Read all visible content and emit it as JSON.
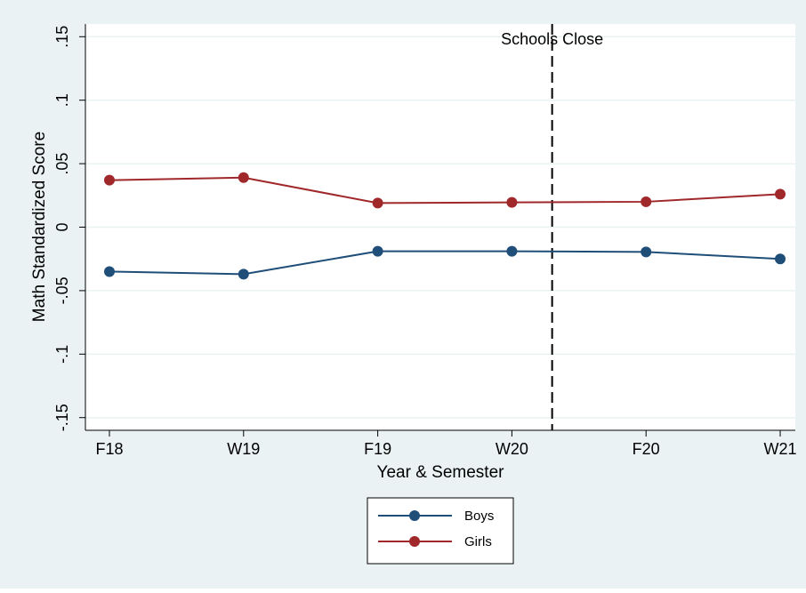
{
  "chart_data": {
    "type": "line",
    "title": "",
    "xlabel": "Year & Semester",
    "ylabel": "Math Standardized Score",
    "categories": [
      "F18",
      "W19",
      "F19",
      "W20",
      "F20",
      "W21"
    ],
    "ylim": [
      -0.16,
      0.16
    ],
    "yticks": [
      {
        "value": -0.15,
        "label": "-.15"
      },
      {
        "value": -0.1,
        "label": "-.1"
      },
      {
        "value": -0.05,
        "label": "-.05"
      },
      {
        "value": 0,
        "label": "0"
      },
      {
        "value": 0.05,
        "label": ".05"
      },
      {
        "value": 0.1,
        "label": ".1"
      },
      {
        "value": 0.15,
        "label": ".15"
      }
    ],
    "grid": true,
    "series": [
      {
        "name": "Boys",
        "color": "#1f4e79",
        "values": [
          -0.035,
          -0.037,
          -0.019,
          -0.019,
          -0.0195,
          -0.025
        ]
      },
      {
        "name": "Girls",
        "color": "#a0282b",
        "values": [
          0.037,
          0.039,
          0.019,
          0.0195,
          0.02,
          0.026
        ]
      }
    ],
    "annotations": [
      {
        "text": "Schools Close",
        "x_between": [
          "W20",
          "F20"
        ],
        "x_position": 0.3,
        "style": "dashed-vertical-line"
      }
    ],
    "legend": {
      "placement": "bottom-center"
    }
  },
  "colors": {
    "outer_background": "#eaf2f3",
    "plot_background": "#ffffff",
    "grid": "#eaf2f3"
  }
}
